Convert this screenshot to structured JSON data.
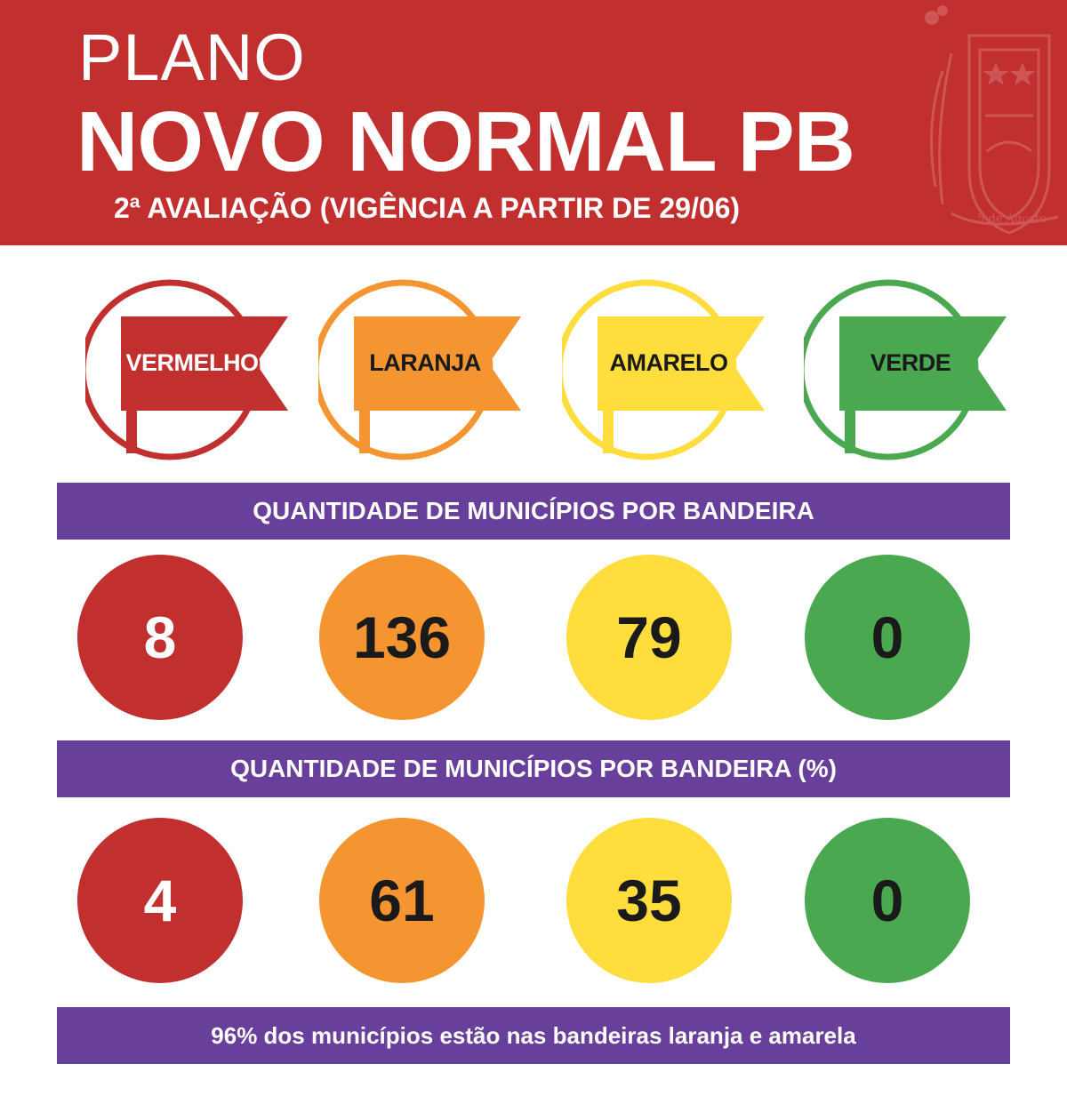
{
  "header": {
    "plano": "PLANO",
    "title": "NOVO NORMAL PB",
    "subtitle": "2ª AVALIAÇÃO (VIGÊNCIA A PARTIR DE 29/06)",
    "crest_text": "5 de Agosto",
    "background_color": "#c1302f"
  },
  "flags": [
    {
      "label": "VERMELHO",
      "color": "#c1302f",
      "text_color": "#ffffff"
    },
    {
      "label": "LARANJA",
      "color": "#f49532",
      "text_color": "#1a1a1a"
    },
    {
      "label": "AMARELO",
      "color": "#fedd3d",
      "text_color": "#1a1a1a"
    },
    {
      "label": "VERDE",
      "color": "#4aa850",
      "text_color": "#1a1a1a"
    }
  ],
  "section_counts": {
    "title": "QUANTIDADE DE MUNICÍPIOS POR BANDEIRA",
    "values": [
      "8",
      "136",
      "79",
      "0"
    ]
  },
  "section_percent": {
    "title": "QUANTIDADE DE MUNICÍPIOS POR BANDEIRA (%)",
    "values": [
      "4",
      "61",
      "35",
      "0"
    ]
  },
  "footer": {
    "text": "96% dos municípios estão nas bandeiras laranja e amarela"
  },
  "colors": {
    "banner": "#683f9a",
    "red": "#c1302f",
    "orange": "#f49532",
    "yellow": "#fedd3d",
    "green": "#4aa850"
  }
}
